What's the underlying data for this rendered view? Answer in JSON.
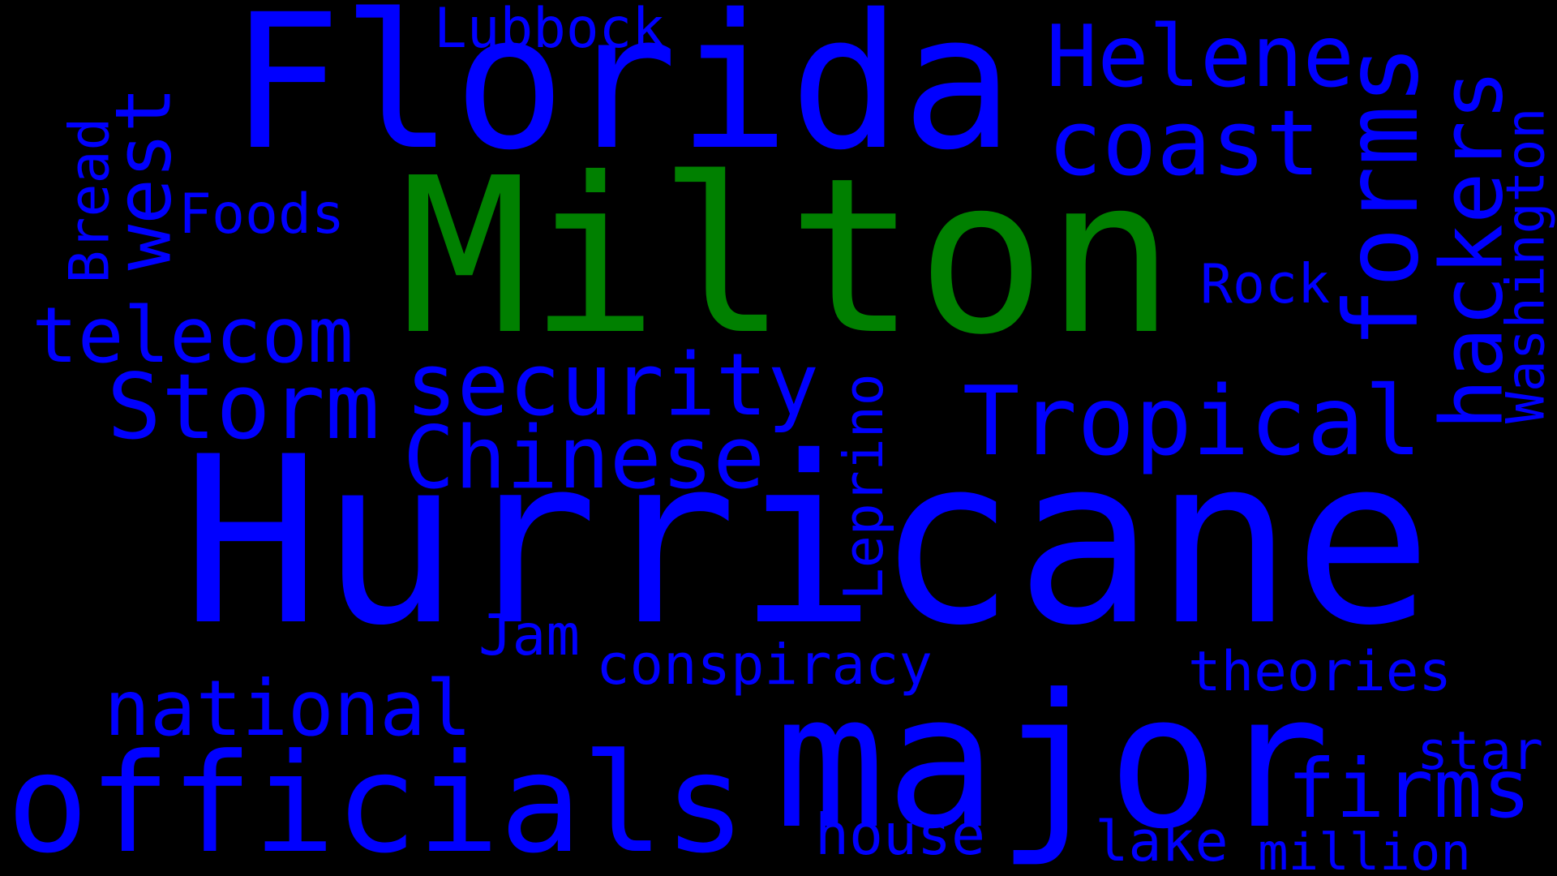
{
  "colors": {
    "background": "#000000",
    "accent": "#008000",
    "primary": "#0000ff"
  },
  "words": [
    {
      "text": "Hurricane",
      "color": "#0000ff",
      "orientation": "horizontal"
    },
    {
      "text": "Milton",
      "color": "#008000",
      "orientation": "horizontal"
    },
    {
      "text": "Florida",
      "color": "#0000ff",
      "orientation": "horizontal"
    },
    {
      "text": "major",
      "color": "#0000ff",
      "orientation": "horizontal"
    },
    {
      "text": "officials",
      "color": "#0000ff",
      "orientation": "horizontal"
    },
    {
      "text": "Tropical",
      "color": "#0000ff",
      "orientation": "horizontal"
    },
    {
      "text": "Storm",
      "color": "#0000ff",
      "orientation": "horizontal"
    },
    {
      "text": "national",
      "color": "#0000ff",
      "orientation": "horizontal"
    },
    {
      "text": "coast",
      "color": "#0000ff",
      "orientation": "horizontal"
    },
    {
      "text": "Helene",
      "color": "#0000ff",
      "orientation": "horizontal"
    },
    {
      "text": "west",
      "color": "#0000ff",
      "orientation": "vertical"
    },
    {
      "text": "forms",
      "color": "#0000ff",
      "orientation": "vertical"
    },
    {
      "text": "hackers",
      "color": "#0000ff",
      "orientation": "vertical"
    },
    {
      "text": "telecom",
      "color": "#0000ff",
      "orientation": "horizontal"
    },
    {
      "text": "security",
      "color": "#0000ff",
      "orientation": "horizontal"
    },
    {
      "text": "Chinese",
      "color": "#0000ff",
      "orientation": "horizontal"
    },
    {
      "text": "firms",
      "color": "#0000ff",
      "orientation": "horizontal"
    },
    {
      "text": "Lubbock",
      "color": "#0000ff",
      "orientation": "horizontal"
    },
    {
      "text": "Foods",
      "color": "#0000ff",
      "orientation": "horizontal"
    },
    {
      "text": "Bread",
      "color": "#0000ff",
      "orientation": "vertical"
    },
    {
      "text": "Rock",
      "color": "#0000ff",
      "orientation": "horizontal"
    },
    {
      "text": "Washington",
      "color": "#0000ff",
      "orientation": "vertical"
    },
    {
      "text": "Leprino",
      "color": "#0000ff",
      "orientation": "vertical"
    },
    {
      "text": "conspiracy",
      "color": "#0000ff",
      "orientation": "horizontal"
    },
    {
      "text": "theories",
      "color": "#0000ff",
      "orientation": "horizontal"
    },
    {
      "text": "Jam",
      "color": "#0000ff",
      "orientation": "horizontal"
    },
    {
      "text": "star",
      "color": "#0000ff",
      "orientation": "horizontal"
    },
    {
      "text": "house",
      "color": "#0000ff",
      "orientation": "horizontal"
    },
    {
      "text": "lake",
      "color": "#0000ff",
      "orientation": "horizontal"
    },
    {
      "text": "million",
      "color": "#0000ff",
      "orientation": "horizontal"
    }
  ]
}
